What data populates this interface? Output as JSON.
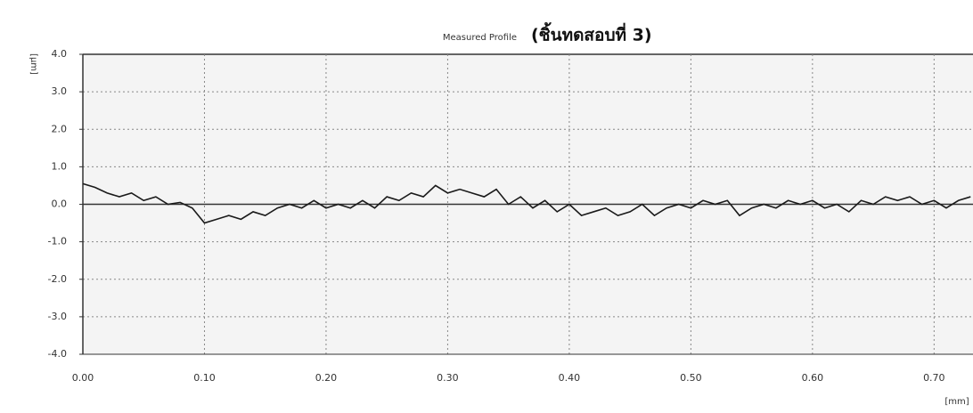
{
  "chart_data": {
    "type": "line",
    "title": "Measured Profile",
    "subtitle": "(ชิ้นทดสอบที่ 3)",
    "y_label": "[µm]",
    "x_label": "[mm]",
    "x": [
      0.0,
      0.01,
      0.02,
      0.03,
      0.04,
      0.05,
      0.06,
      0.07,
      0.08,
      0.09,
      0.1,
      0.11,
      0.12,
      0.13,
      0.14,
      0.15,
      0.16,
      0.17,
      0.18,
      0.19,
      0.2,
      0.21,
      0.22,
      0.23,
      0.24,
      0.25,
      0.26,
      0.27,
      0.28,
      0.29,
      0.3,
      0.31,
      0.32,
      0.33,
      0.34,
      0.35,
      0.36,
      0.37,
      0.38,
      0.39,
      0.4,
      0.41,
      0.42,
      0.43,
      0.44,
      0.45,
      0.46,
      0.47,
      0.48,
      0.49,
      0.5,
      0.51,
      0.52,
      0.53,
      0.54,
      0.55,
      0.56,
      0.57,
      0.58,
      0.59,
      0.6,
      0.61,
      0.62,
      0.63,
      0.64,
      0.65,
      0.66,
      0.67,
      0.68,
      0.69,
      0.7,
      0.71,
      0.72,
      0.73
    ],
    "series": [
      {
        "name": "Measured Profile",
        "color": "#1a1a1a",
        "values": [
          0.55,
          0.45,
          0.3,
          0.2,
          0.3,
          0.1,
          0.2,
          0.0,
          0.05,
          -0.1,
          -0.5,
          -0.4,
          -0.3,
          -0.4,
          -0.2,
          -0.3,
          -0.1,
          0.0,
          -0.1,
          0.1,
          -0.1,
          0.0,
          -0.1,
          0.1,
          -0.1,
          0.2,
          0.1,
          0.3,
          0.2,
          0.5,
          0.3,
          0.4,
          0.3,
          0.2,
          0.4,
          0.0,
          0.2,
          -0.1,
          0.1,
          -0.2,
          0.0,
          -0.3,
          -0.2,
          -0.1,
          -0.3,
          -0.2,
          0.0,
          -0.3,
          -0.1,
          0.0,
          -0.1,
          0.1,
          0.0,
          0.1,
          -0.3,
          -0.1,
          0.0,
          -0.1,
          0.1,
          0.0,
          0.1,
          -0.1,
          0.0,
          -0.2,
          0.1,
          0.0,
          0.2,
          0.1,
          0.2,
          0.0,
          0.1,
          -0.1,
          0.1,
          0.2
        ]
      }
    ],
    "xlim": [
      0,
      0.732
    ],
    "ylim": [
      -4,
      4
    ],
    "xticks": [
      {
        "value": 0,
        "label": "0.00"
      },
      {
        "value": 0.1,
        "label": "0.10"
      },
      {
        "value": 0.2,
        "label": "0.20"
      },
      {
        "value": 0.3,
        "label": "0.30"
      },
      {
        "value": 0.4,
        "label": "0.40"
      },
      {
        "value": 0.5,
        "label": "0.50"
      },
      {
        "value": 0.6,
        "label": "0.60"
      },
      {
        "value": 0.7,
        "label": "0.70"
      }
    ],
    "yticks": [
      {
        "value": 4,
        "label": "4.0"
      },
      {
        "value": 3,
        "label": "3.0"
      },
      {
        "value": 2,
        "label": "2.0"
      },
      {
        "value": 1,
        "label": "1.0"
      },
      {
        "value": 0,
        "label": "0.0"
      },
      {
        "value": -1,
        "label": "-1.0"
      },
      {
        "value": -2,
        "label": "-2.0"
      },
      {
        "value": -3,
        "label": "-3.0"
      },
      {
        "value": -4,
        "label": "-4.0"
      }
    ],
    "grid": true
  }
}
